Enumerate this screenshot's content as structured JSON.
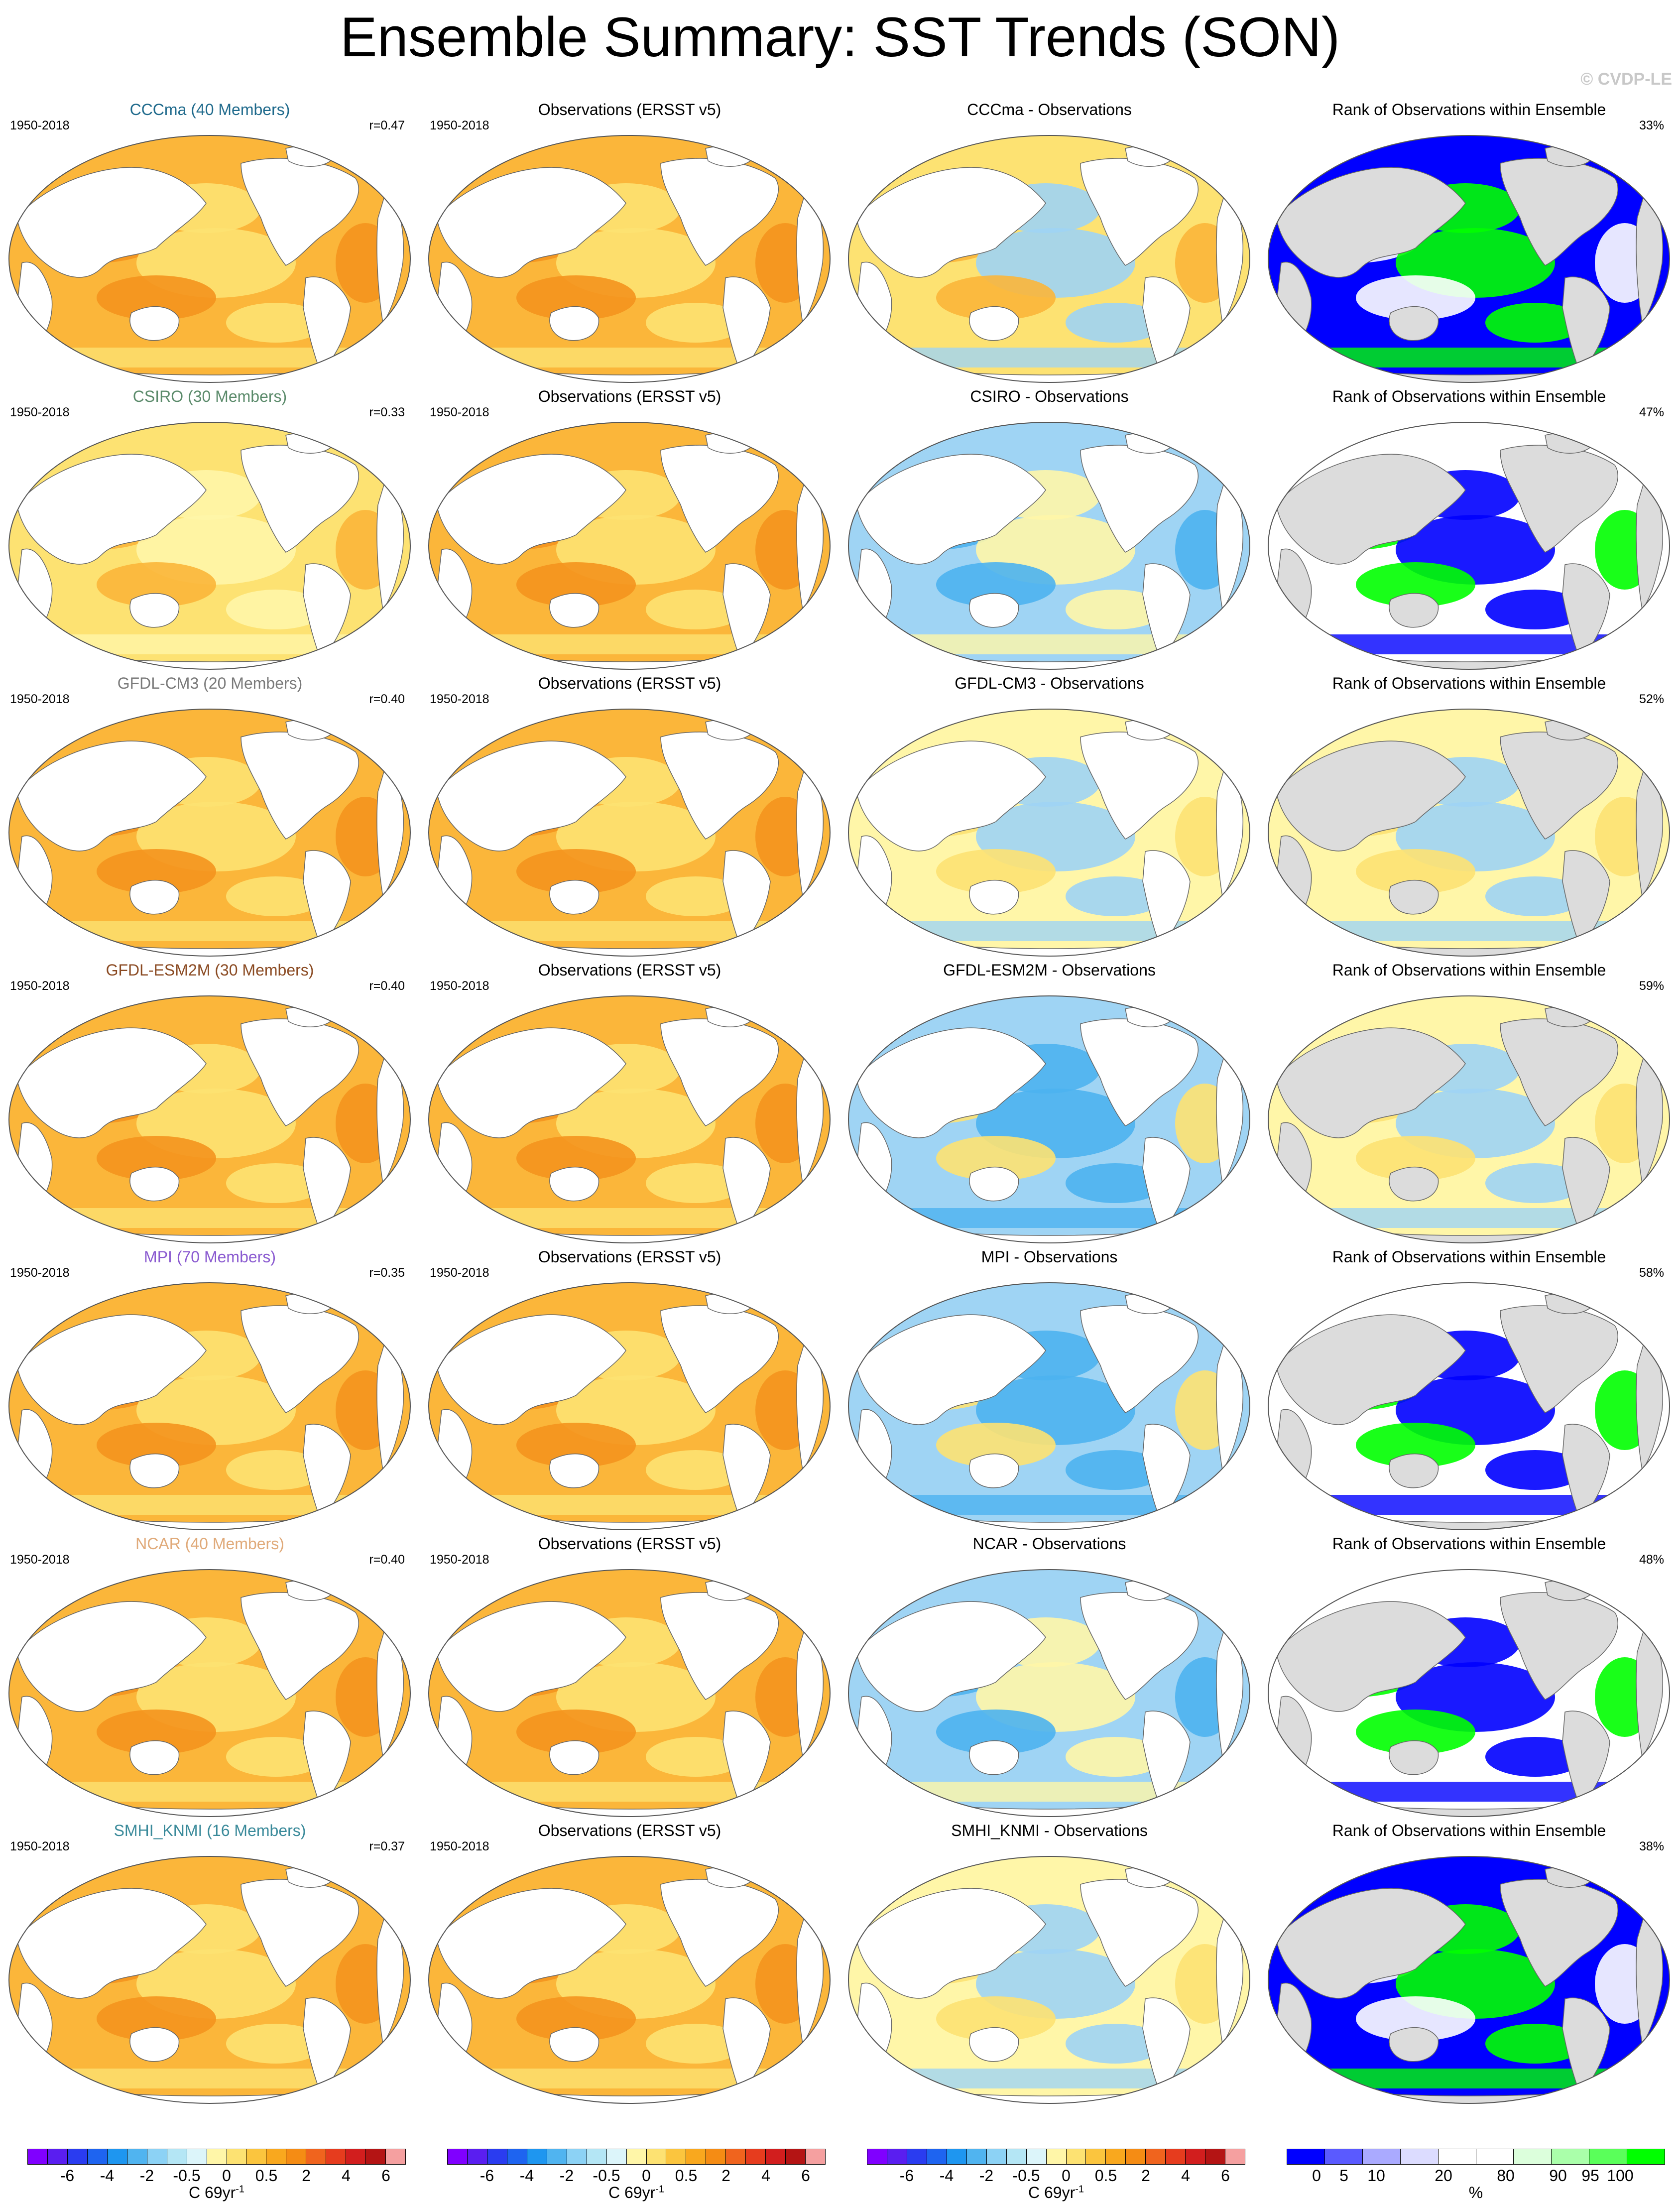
{
  "page": {
    "title": "Ensemble Summary: SST Trends (SON)",
    "copyright": "© CVDP-LE"
  },
  "colors": {
    "land": "#ffffff",
    "land_rank": "#dcdcdc",
    "ocean_warm": "#fbb63a",
    "ocean_warmer": "#f4941e",
    "ocean_light": "#fde272",
    "ocean_pale": "#fff6a8",
    "ocean_cool": "#9fd4f4",
    "ocean_cooler": "#4cb2f0",
    "rank_low": "#0000ff",
    "rank_high": "#00ff00",
    "rank_mid": "#ffffff"
  },
  "rows": [
    {
      "model": {
        "title": "CCCma (40 Members)",
        "title_color": "#1f6a8c",
        "period": "1950-2018",
        "r": "r=0.47"
      },
      "obs": {
        "title": "Observations (ERSST v5)",
        "period": "1950-2018"
      },
      "diff": {
        "title": "CCCma - Observations"
      },
      "rank": {
        "title": "Rank of Observations within Ensemble",
        "pct": "33%"
      },
      "model_style": "warm",
      "diff_style": "mixed_warm",
      "rank_style": "blue_heavy"
    },
    {
      "model": {
        "title": "CSIRO (30 Members)",
        "title_color": "#5a8a6a",
        "period": "1950-2018",
        "r": "r=0.33"
      },
      "obs": {
        "title": "Observations (ERSST v5)",
        "period": "1950-2018"
      },
      "diff": {
        "title": "CSIRO - Observations"
      },
      "rank": {
        "title": "Rank of Observations within Ensemble",
        "pct": "47%"
      },
      "model_style": "light",
      "diff_style": "cool",
      "rank_style": "green_heavy"
    },
    {
      "model": {
        "title": "GFDL-CM3 (20 Members)",
        "title_color": "#7a7a7a",
        "period": "1950-2018",
        "r": "r=0.40"
      },
      "obs": {
        "title": "Observations (ERSST v5)",
        "period": "1950-2018"
      },
      "diff": {
        "title": "GFDL-CM3 - Observations"
      },
      "rank": {
        "title": "Rank of Observations within Ensemble",
        "pct": "52%"
      },
      "model_style": "warm",
      "diff_style": "mixed",
      "rank_style": "mixed"
    },
    {
      "model": {
        "title": "GFDL-ESM2M (30 Members)",
        "title_color": "#8a4a22",
        "period": "1950-2018",
        "r": "r=0.40"
      },
      "obs": {
        "title": "Observations (ERSST v5)",
        "period": "1950-2018"
      },
      "diff": {
        "title": "GFDL-ESM2M - Observations"
      },
      "rank": {
        "title": "Rank of Observations within Ensemble",
        "pct": "59%"
      },
      "model_style": "warm",
      "diff_style": "mixed_cool",
      "rank_style": "mixed"
    },
    {
      "model": {
        "title": "MPI (70 Members)",
        "title_color": "#8a5ad0",
        "period": "1950-2018",
        "r": "r=0.35"
      },
      "obs": {
        "title": "Observations (ERSST v5)",
        "period": "1950-2018"
      },
      "diff": {
        "title": "MPI - Observations"
      },
      "rank": {
        "title": "Rank of Observations within Ensemble",
        "pct": "58%"
      },
      "model_style": "warm",
      "diff_style": "mixed_cool",
      "rank_style": "green_heavy"
    },
    {
      "model": {
        "title": "NCAR (40 Members)",
        "title_color": "#e0aa7a",
        "period": "1950-2018",
        "r": "r=0.40"
      },
      "obs": {
        "title": "Observations (ERSST v5)",
        "period": "1950-2018"
      },
      "diff": {
        "title": "NCAR - Observations"
      },
      "rank": {
        "title": "Rank of Observations within Ensemble",
        "pct": "48%"
      },
      "model_style": "warm",
      "diff_style": "cool",
      "rank_style": "green_heavy"
    },
    {
      "model": {
        "title": "SMHI_KNMI (16 Members)",
        "title_color": "#3a8a9a",
        "period": "1950-2018",
        "r": "r=0.37"
      },
      "obs": {
        "title": "Observations (ERSST v5)",
        "period": "1950-2018"
      },
      "diff": {
        "title": "SMHI_KNMI - Observations"
      },
      "rank": {
        "title": "Rank of Observations within Ensemble",
        "pct": "38%"
      },
      "model_style": "warm",
      "diff_style": "mixed",
      "rank_style": "blue_heavy"
    }
  ],
  "colorbars": {
    "trend": {
      "colors": [
        "#8000ff",
        "#5a1ef0",
        "#2a3cf0",
        "#1e64f0",
        "#1e96f0",
        "#50b4f0",
        "#8cd2f5",
        "#b4e6f5",
        "#dcf5fa",
        "#fff6a8",
        "#fde272",
        "#fbc53e",
        "#f9a81e",
        "#f58c14",
        "#f0641e",
        "#e63c1e",
        "#d21e1e",
        "#b41414",
        "#f5a0a0"
      ],
      "ticks": [
        "-6",
        "-4",
        "-2",
        "-0.5",
        "0",
        "0.5",
        "2",
        "4",
        "6"
      ],
      "unit": "C 69yr",
      "unit_sup": "-1"
    },
    "rank": {
      "colors": [
        "#0000ff",
        "#5a5aff",
        "#aaaaff",
        "#dcdcff",
        "#ffffff",
        "#ffffff",
        "#dcffdc",
        "#aaffaa",
        "#5aff5a",
        "#00ff00"
      ],
      "ticks": [
        "0",
        "5",
        "10",
        "20",
        "80",
        "90",
        "95",
        "100"
      ],
      "unit": "%"
    }
  }
}
